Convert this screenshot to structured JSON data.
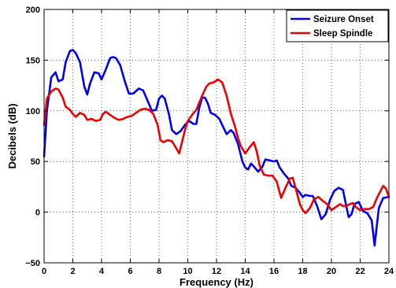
{
  "chart_data": {
    "type": "line",
    "xlabel": "Frequency (Hz)",
    "ylabel": "Decibels (dB)",
    "xlim": [
      0,
      24
    ],
    "ylim": [
      -50,
      200
    ],
    "xticks": [
      0,
      2,
      4,
      6,
      8,
      10,
      12,
      14,
      16,
      18,
      20,
      22,
      24
    ],
    "yticks": [
      -50,
      0,
      50,
      100,
      150,
      200
    ],
    "xtick_labels": [
      "0",
      "2",
      "4",
      "6",
      "8",
      "10",
      "12",
      "14",
      "16",
      "18",
      "20",
      "22",
      "24"
    ],
    "ytick_labels": [
      "−50",
      "0",
      "50",
      "100",
      "150",
      "200"
    ],
    "grid": true,
    "legend_position": "top-right",
    "series": [
      {
        "name": "Seizure Onset",
        "color": "#0000ee",
        "points": [
          [
            0,
            55
          ],
          [
            0.2,
            100
          ],
          [
            0.5,
            133
          ],
          [
            0.8,
            138
          ],
          [
            1.0,
            129
          ],
          [
            1.3,
            131
          ],
          [
            1.5,
            148
          ],
          [
            1.8,
            159
          ],
          [
            2.0,
            160
          ],
          [
            2.2,
            157
          ],
          [
            2.5,
            148
          ],
          [
            2.8,
            124
          ],
          [
            3.0,
            116
          ],
          [
            3.2,
            127
          ],
          [
            3.5,
            138
          ],
          [
            3.8,
            137
          ],
          [
            4.0,
            131
          ],
          [
            4.3,
            141
          ],
          [
            4.6,
            152
          ],
          [
            4.8,
            153
          ],
          [
            5.0,
            152
          ],
          [
            5.3,
            145
          ],
          [
            5.6,
            130
          ],
          [
            5.9,
            117
          ],
          [
            6.2,
            117
          ],
          [
            6.6,
            122
          ],
          [
            6.9,
            120
          ],
          [
            7.2,
            110
          ],
          [
            7.5,
            100
          ],
          [
            7.8,
            101
          ],
          [
            8.0,
            112
          ],
          [
            8.2,
            115
          ],
          [
            8.4,
            112
          ],
          [
            8.7,
            96
          ],
          [
            8.9,
            81
          ],
          [
            9.2,
            77
          ],
          [
            9.5,
            80
          ],
          [
            9.8,
            86
          ],
          [
            10.1,
            90
          ],
          [
            10.4,
            87
          ],
          [
            10.6,
            87
          ],
          [
            10.8,
            103
          ],
          [
            11.0,
            113
          ],
          [
            11.2,
            113
          ],
          [
            11.4,
            107
          ],
          [
            11.6,
            98
          ],
          [
            11.9,
            96
          ],
          [
            12.2,
            92
          ],
          [
            12.5,
            83
          ],
          [
            12.7,
            77
          ],
          [
            13.0,
            81
          ],
          [
            13.2,
            78
          ],
          [
            13.5,
            67
          ],
          [
            13.8,
            50
          ],
          [
            14.0,
            44
          ],
          [
            14.2,
            42
          ],
          [
            14.4,
            48
          ],
          [
            14.6,
            45
          ],
          [
            14.9,
            40
          ],
          [
            15.2,
            45
          ],
          [
            15.4,
            52
          ],
          [
            15.7,
            51
          ],
          [
            16.0,
            50
          ],
          [
            16.2,
            51
          ],
          [
            16.4,
            44
          ],
          [
            16.7,
            38
          ],
          [
            17.0,
            33
          ],
          [
            17.2,
            26
          ],
          [
            17.5,
            24
          ],
          [
            17.8,
            19
          ],
          [
            18.0,
            15
          ],
          [
            18.2,
            17
          ],
          [
            18.5,
            16
          ],
          [
            18.7,
            16
          ],
          [
            19.0,
            6
          ],
          [
            19.3,
            -7
          ],
          [
            19.6,
            -2
          ],
          [
            19.9,
            12
          ],
          [
            20.2,
            21
          ],
          [
            20.5,
            24
          ],
          [
            20.8,
            22
          ],
          [
            21.0,
            8
          ],
          [
            21.2,
            -5
          ],
          [
            21.4,
            -2
          ],
          [
            21.6,
            8
          ],
          [
            21.9,
            10
          ],
          [
            22.2,
            1
          ],
          [
            22.5,
            -1
          ],
          [
            22.8,
            -8
          ],
          [
            23.0,
            -33
          ],
          [
            23.3,
            4
          ],
          [
            23.6,
            14
          ],
          [
            24,
            15
          ]
        ]
      },
      {
        "name": "Sleep Spindle",
        "color": "#ee0000",
        "points": [
          [
            0,
            86
          ],
          [
            0.2,
            112
          ],
          [
            0.5,
            119
          ],
          [
            0.8,
            122
          ],
          [
            1.0,
            121
          ],
          [
            1.3,
            113
          ],
          [
            1.5,
            104
          ],
          [
            1.8,
            101
          ],
          [
            2.0,
            97
          ],
          [
            2.2,
            94
          ],
          [
            2.5,
            98
          ],
          [
            2.8,
            96
          ],
          [
            3.0,
            91
          ],
          [
            3.3,
            92
          ],
          [
            3.6,
            90
          ],
          [
            3.9,
            91
          ],
          [
            4.1,
            97
          ],
          [
            4.3,
            99
          ],
          [
            4.6,
            96
          ],
          [
            4.9,
            93
          ],
          [
            5.2,
            91
          ],
          [
            5.5,
            92
          ],
          [
            5.8,
            94
          ],
          [
            6.1,
            95
          ],
          [
            6.4,
            98
          ],
          [
            6.7,
            101
          ],
          [
            7.0,
            102
          ],
          [
            7.3,
            101
          ],
          [
            7.6,
            97
          ],
          [
            7.9,
            86
          ],
          [
            8.1,
            71
          ],
          [
            8.3,
            69
          ],
          [
            8.6,
            71
          ],
          [
            8.9,
            70
          ],
          [
            9.2,
            63
          ],
          [
            9.4,
            58
          ],
          [
            9.6,
            69
          ],
          [
            9.8,
            81
          ],
          [
            10.0,
            90
          ],
          [
            10.3,
            96
          ],
          [
            10.6,
            101
          ],
          [
            10.8,
            108
          ],
          [
            11.0,
            115
          ],
          [
            11.3,
            124
          ],
          [
            11.5,
            127
          ],
          [
            11.8,
            128
          ],
          [
            12.1,
            131
          ],
          [
            12.4,
            128
          ],
          [
            12.7,
            115
          ],
          [
            13.0,
            97
          ],
          [
            13.3,
            84
          ],
          [
            13.5,
            73
          ],
          [
            13.7,
            65
          ],
          [
            14.0,
            58
          ],
          [
            14.3,
            64
          ],
          [
            14.6,
            69
          ],
          [
            14.8,
            60
          ],
          [
            15.0,
            46
          ],
          [
            15.3,
            37
          ],
          [
            15.6,
            36
          ],
          [
            15.9,
            36
          ],
          [
            16.2,
            30
          ],
          [
            16.5,
            14
          ],
          [
            16.8,
            24
          ],
          [
            17.1,
            33
          ],
          [
            17.3,
            34
          ],
          [
            17.5,
            24
          ],
          [
            17.8,
            8
          ],
          [
            18.0,
            2
          ],
          [
            18.2,
            -1
          ],
          [
            18.5,
            4
          ],
          [
            18.8,
            13
          ],
          [
            19.1,
            15
          ],
          [
            19.4,
            11
          ],
          [
            19.7,
            8
          ],
          [
            20.0,
            2
          ],
          [
            20.3,
            5
          ],
          [
            20.6,
            8
          ],
          [
            20.8,
            6
          ],
          [
            21.0,
            6
          ],
          [
            21.3,
            8
          ],
          [
            21.5,
            9
          ],
          [
            21.7,
            5
          ],
          [
            22.0,
            2
          ],
          [
            22.3,
            3
          ],
          [
            22.6,
            3
          ],
          [
            22.9,
            5
          ],
          [
            23.2,
            15
          ],
          [
            23.6,
            26
          ],
          [
            23.8,
            23
          ],
          [
            24,
            15
          ]
        ]
      }
    ]
  }
}
